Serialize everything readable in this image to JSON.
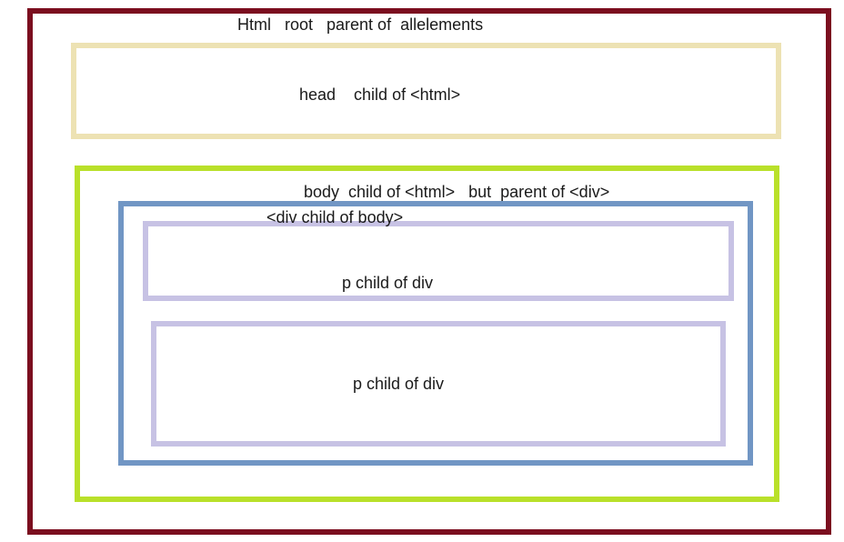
{
  "colors": {
    "html_border": "#7b0e1f",
    "head_border": "#ede2b3",
    "body_border": "#b9e02a",
    "div_border": "#7196c4",
    "p_border": "#c7c2e4"
  },
  "diagram": {
    "html_label": "Html   root   parent of  allelements",
    "head_label": "head    child of <html>",
    "body_label": "body  child of <html>   but  parent of <div>",
    "div_label": "<div child of body>",
    "p1_label": "p child of div",
    "p2_label": "p child of div"
  }
}
